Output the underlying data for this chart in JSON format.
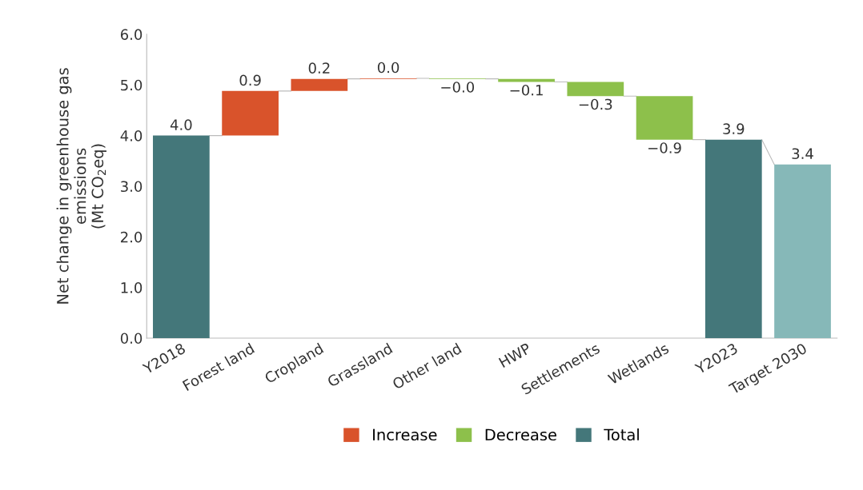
{
  "chart_data": {
    "type": "bar",
    "ylabel": "Net change in greenhouse gas\nemissions\n(Mt CO$_{2}$eq)",
    "categories": [
      "Y2018",
      "Forest land",
      "Cropland",
      "Grassland",
      "Other land",
      "HWP",
      "Settlements",
      "Wetlands",
      "Y2023",
      "Target 2030"
    ],
    "series": [
      {
        "name": "Increase",
        "color": "#d9532b",
        "base": [
          null,
          4.0,
          4.88,
          5.12,
          null,
          null,
          null,
          null,
          null,
          null
        ],
        "values": [
          null,
          0.88,
          0.24,
          0.01,
          null,
          null,
          null,
          null,
          null,
          null
        ],
        "value_labels": [
          null,
          "0.9",
          "0.2",
          "0.0",
          null,
          null,
          null,
          null,
          null,
          null
        ]
      },
      {
        "name": "Decrease",
        "color": "#8dc04b",
        "base": [
          null,
          null,
          null,
          null,
          5.13,
          5.12,
          5.06,
          4.78,
          null,
          null
        ],
        "values": [
          null,
          null,
          null,
          null,
          -0.01,
          -0.06,
          -0.28,
          -0.86,
          null,
          null
        ],
        "value_labels": [
          null,
          null,
          null,
          null,
          "−0.0",
          "−0.1",
          "−0.3",
          "−0.9",
          null,
          null
        ]
      },
      {
        "name": "Total",
        "color": "#44777a",
        "colors": [
          "#44777a",
          null,
          null,
          null,
          null,
          null,
          null,
          null,
          "#44777a",
          "#86b8b8"
        ],
        "values": [
          4.0,
          null,
          null,
          null,
          null,
          null,
          null,
          null,
          3.92,
          3.43
        ],
        "value_labels": [
          "4.0",
          null,
          null,
          null,
          null,
          null,
          null,
          null,
          "3.9",
          "3.4"
        ]
      }
    ],
    "ylim": [
      0,
      6
    ],
    "yticks": [
      {
        "value": 0,
        "label": "0.0"
      },
      {
        "value": 1,
        "label": "1.0"
      },
      {
        "value": 2,
        "label": "2.0"
      },
      {
        "value": 3,
        "label": "3.0"
      },
      {
        "value": 4,
        "label": "4.0"
      },
      {
        "value": 5,
        "label": "5.0"
      },
      {
        "value": 6,
        "label": "6.0"
      }
    ],
    "grid": false,
    "legend": "bottom"
  }
}
